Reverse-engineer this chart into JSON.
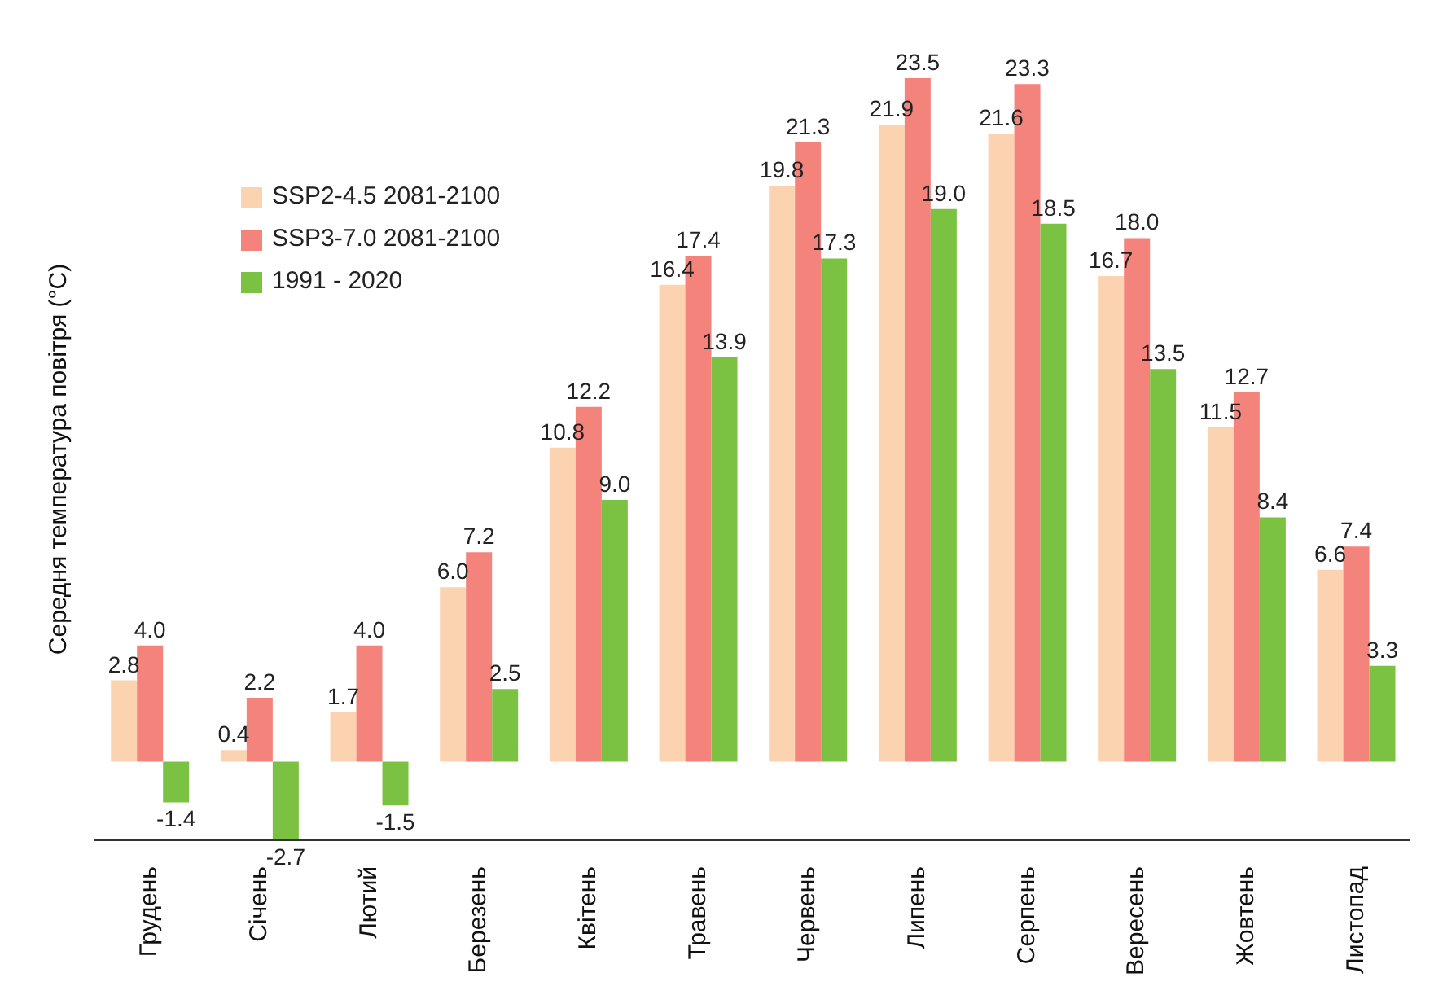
{
  "chart_data": {
    "type": "bar",
    "ylabel": "Середня температура повітря (°C)",
    "categories": [
      "Грудень",
      "Січень",
      "Лютий",
      "Березень",
      "Квітень",
      "Травень",
      "Червень",
      "Липень",
      "Серпень",
      "Вересень",
      "Жовтень",
      "Листопад"
    ],
    "series": [
      {
        "name": "SSP2-4.5 2081-2100",
        "color": "#fcd3b0",
        "values": [
          2.8,
          0.4,
          1.7,
          6.0,
          10.8,
          16.4,
          19.8,
          21.9,
          21.6,
          16.7,
          11.5,
          6.6
        ],
        "value_labels": [
          "2.8",
          "0.4",
          "1.7",
          "6.0",
          "10.8",
          "16.4",
          "19.8",
          "21.9",
          "21.6",
          "16.7",
          "11.5",
          "6.6"
        ]
      },
      {
        "name": "SSP3-7.0 2081-2100",
        "color": "#f4837b",
        "values": [
          4.0,
          2.2,
          4.0,
          7.2,
          12.2,
          17.4,
          21.3,
          23.5,
          23.3,
          18.0,
          12.7,
          7.4
        ],
        "value_labels": [
          "4.0",
          "2.2",
          "4.0",
          "7.2",
          "12.2",
          "17.4",
          "21.3",
          "23.5",
          "23.3",
          "18.0",
          "12.7",
          "7.4"
        ]
      },
      {
        "name": "1991 - 2020",
        "color": "#7cc242",
        "values": [
          -1.4,
          -2.7,
          -1.5,
          2.5,
          9.0,
          13.9,
          17.3,
          19.0,
          18.5,
          13.5,
          8.4,
          3.3
        ],
        "value_labels": [
          "-1.4",
          "-2.7",
          "-1.5",
          "2.5",
          "9.0",
          "13.9",
          "17.3",
          "19.0",
          "18.5",
          "13.5",
          "8.4",
          "3.3"
        ]
      }
    ],
    "legend": "top left"
  }
}
